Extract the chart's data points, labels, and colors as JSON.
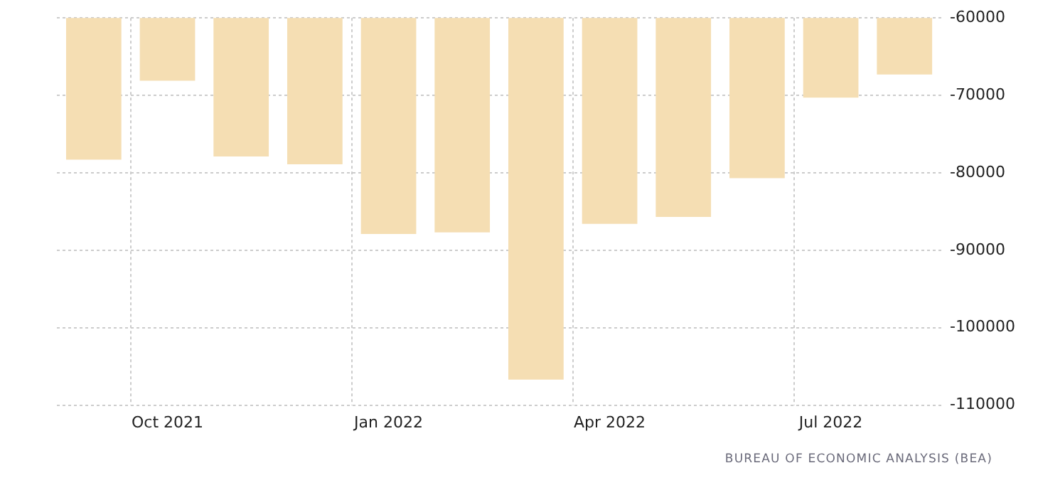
{
  "chart_data": {
    "type": "bar",
    "categories": [
      null,
      "Oct 2021",
      null,
      null,
      "Jan 2022",
      null,
      null,
      "Apr 2022",
      null,
      null,
      "Jul 2022",
      null
    ],
    "values": [
      -78300,
      -68100,
      -77900,
      -78900,
      -87900,
      -87700,
      -106700,
      -86600,
      -85700,
      -80700,
      -70300,
      -67300
    ],
    "color": "#f5deb3",
    "ylim": [
      -110000,
      -60000
    ],
    "yticks": [
      -110000,
      -100000,
      -90000,
      -80000,
      -70000,
      -60000
    ],
    "grid": true,
    "annotations": [
      "BUREAU OF ECONOMIC ANALYSIS (BEA)"
    ]
  }
}
